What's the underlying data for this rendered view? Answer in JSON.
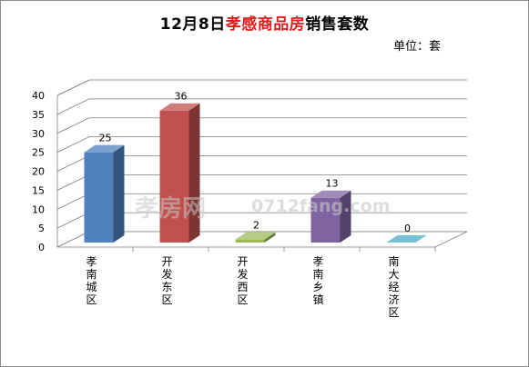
{
  "title": {
    "prefix": "12月8日",
    "highlight": "孝感商品房",
    "suffix": "销售套数"
  },
  "unit_label": "单位：套",
  "watermark": {
    "logo_text": "孝房网",
    "site": "0712fang.com"
  },
  "chart_data": {
    "type": "bar",
    "categories": [
      "孝南城区",
      "开发东区",
      "开发西区",
      "孝南乡镇",
      "南大经济区"
    ],
    "values": [
      25,
      36,
      2,
      13,
      0
    ],
    "ylim": [
      0,
      40
    ],
    "yticks": [
      0,
      5,
      10,
      15,
      20,
      25,
      30,
      35,
      40
    ],
    "grid": true,
    "legend": "none",
    "colors": [
      "#4f81bd",
      "#c0504d",
      "#9bbb59",
      "#8064a2",
      "#4bacc6"
    ]
  }
}
